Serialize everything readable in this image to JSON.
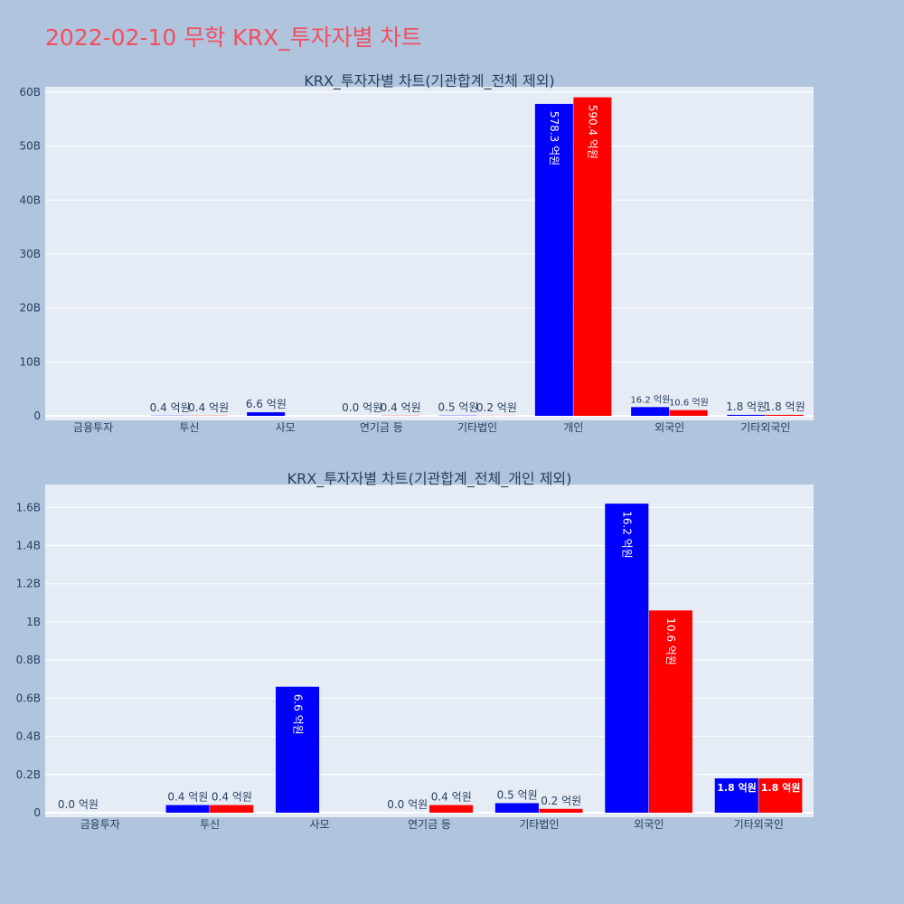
{
  "page": {
    "title": "2022-02-10 무학 KRX_투자자별 차트"
  },
  "colors": {
    "background": "#b0c4de",
    "plot_background": "#e5ecf6",
    "title": "#f05060",
    "series_buy": "#0000ff",
    "series_sell": "#ff0000",
    "text": "#2a3f5f"
  },
  "chart_data": [
    {
      "type": "bar",
      "title": "KRX_투자자별 차트(기관합계_전체 제외)",
      "xlabel": "",
      "ylabel": "",
      "ylim": [
        0,
        61000000000
      ],
      "grid": true,
      "yticks": [
        {
          "value": 0,
          "label": "0"
        },
        {
          "value": 10000000000,
          "label": "10B"
        },
        {
          "value": 20000000000,
          "label": "20B"
        },
        {
          "value": 30000000000,
          "label": "30B"
        },
        {
          "value": 40000000000,
          "label": "40B"
        },
        {
          "value": 50000000000,
          "label": "50B"
        },
        {
          "value": 60000000000,
          "label": "60B"
        }
      ],
      "categories": [
        "금융투자",
        "투신",
        "사모",
        "연기금 등",
        "기타법인",
        "개인",
        "외국인",
        "기타외국인"
      ],
      "series": [
        {
          "color": "#0000ff",
          "values": [
            null,
            40000000,
            660000000,
            0,
            50000000,
            57830000000,
            1620000000,
            180000000
          ],
          "labels": [
            "",
            "0.4 억원",
            "6.6 억원",
            "0.0 억원",
            "0.5 억원",
            "578.3 억원",
            "16.2 억원",
            "1.8 억원"
          ]
        },
        {
          "color": "#ff0000",
          "values": [
            null,
            40000000,
            null,
            40000000,
            20000000,
            59040000000,
            1060000000,
            180000000
          ],
          "labels": [
            "",
            "0.4 억원",
            "",
            "0.4 억원",
            "0.2 억원",
            "590.4 억원",
            "10.6 억원",
            "1.8 억원"
          ]
        }
      ]
    },
    {
      "type": "bar",
      "title": "KRX_투자자별 차트(기관합계_전체_개인 제외)",
      "xlabel": "",
      "ylabel": "",
      "ylim": [
        0,
        1720000000
      ],
      "grid": true,
      "yticks": [
        {
          "value": 0,
          "label": "0"
        },
        {
          "value": 200000000,
          "label": "0.2B"
        },
        {
          "value": 400000000,
          "label": "0.4B"
        },
        {
          "value": 600000000,
          "label": "0.6B"
        },
        {
          "value": 800000000,
          "label": "0.8B"
        },
        {
          "value": 1000000000,
          "label": "1B"
        },
        {
          "value": 1200000000,
          "label": "1.2B"
        },
        {
          "value": 1400000000,
          "label": "1.4B"
        },
        {
          "value": 1600000000,
          "label": "1.6B"
        }
      ],
      "categories": [
        "금융투자",
        "투신",
        "사모",
        "연기금 등",
        "기타법인",
        "외국인",
        "기타외국인"
      ],
      "series": [
        {
          "color": "#0000ff",
          "values": [
            0,
            40000000,
            660000000,
            0,
            50000000,
            1620000000,
            180000000
          ],
          "labels": [
            "0.0 억원",
            "0.4 억원",
            "6.6 억원",
            "0.0 억원",
            "0.5 억원",
            "16.2 억원",
            "1.8 억원"
          ]
        },
        {
          "color": "#ff0000",
          "values": [
            null,
            40000000,
            null,
            40000000,
            20000000,
            1060000000,
            180000000
          ],
          "labels": [
            "",
            "0.4 억원",
            "",
            "0.4 억원",
            "0.2 억원",
            "10.6 억원",
            "1.8 억원"
          ]
        }
      ]
    }
  ]
}
